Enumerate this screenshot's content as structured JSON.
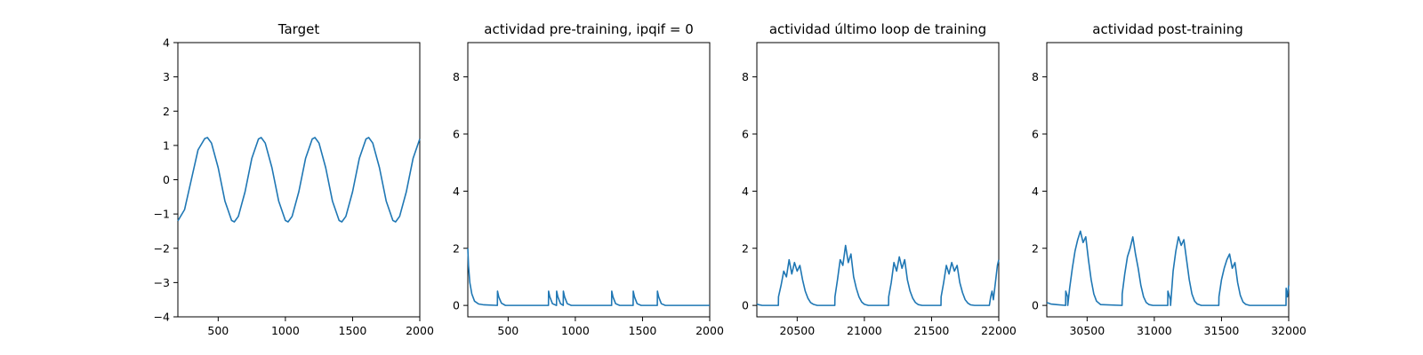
{
  "colors": {
    "series": "#1f77b4",
    "axes": "#000000",
    "background": "#ffffff"
  },
  "chart_data": [
    {
      "type": "line",
      "title": "Target",
      "xlabel": "",
      "ylabel": "",
      "xlim": [
        200,
        2000
      ],
      "ylim": [
        -4,
        4
      ],
      "xticks": [
        500,
        1000,
        1500,
        2000
      ],
      "yticks": [
        -4,
        -3,
        -2,
        -1,
        0,
        1,
        2,
        3,
        4
      ],
      "series": [
        {
          "x": [
            200,
            250,
            300,
            350,
            400,
            420,
            450,
            500,
            550,
            600,
            620,
            650,
            700,
            750,
            800,
            820,
            850,
            900,
            950,
            1000,
            1020,
            1050,
            1100,
            1150,
            1200,
            1220,
            1250,
            1300,
            1350,
            1400,
            1420,
            1450,
            1500,
            1550,
            1600,
            1620,
            1650,
            1700,
            1750,
            1800,
            1820,
            1850,
            1900,
            1950,
            2000
          ],
          "y": [
            -1.2,
            -0.87,
            0,
            0.87,
            1.2,
            1.23,
            1.07,
            0.35,
            -0.62,
            -1.19,
            -1.23,
            -1.07,
            -0.35,
            0.62,
            1.19,
            1.23,
            1.07,
            0.35,
            -0.62,
            -1.19,
            -1.23,
            -1.07,
            -0.35,
            0.62,
            1.19,
            1.23,
            1.07,
            0.35,
            -0.62,
            -1.19,
            -1.23,
            -1.07,
            -0.35,
            0.62,
            1.19,
            1.23,
            1.07,
            0.35,
            -0.62,
            -1.19,
            -1.23,
            -1.07,
            -0.35,
            0.62,
            1.19
          ]
        }
      ]
    },
    {
      "type": "line",
      "title": "actividad pre-training, ipqif = 0",
      "xlabel": "",
      "ylabel": "",
      "xlim": [
        200,
        2000
      ],
      "ylim": [
        -0.4,
        9.2
      ],
      "xticks": [
        500,
        1000,
        1500,
        2000
      ],
      "yticks": [
        0,
        2,
        4,
        6,
        8
      ],
      "series": [
        {
          "x": [
            200,
            205,
            215,
            230,
            250,
            280,
            320,
            420,
            421,
            430,
            450,
            480,
            800,
            801,
            810,
            830,
            860,
            861,
            870,
            890,
            910,
            911,
            920,
            940,
            970,
            1270,
            1271,
            1280,
            1300,
            1330,
            1430,
            1431,
            1440,
            1460,
            1490,
            1610,
            1611,
            1620,
            1640,
            1670,
            2000
          ],
          "y": [
            2.0,
            1.4,
            0.8,
            0.4,
            0.15,
            0.05,
            0.02,
            0.0,
            0.5,
            0.3,
            0.08,
            0.0,
            0.0,
            0.5,
            0.3,
            0.06,
            0.0,
            0.5,
            0.3,
            0.06,
            0.0,
            0.5,
            0.3,
            0.06,
            0.0,
            0.0,
            0.5,
            0.3,
            0.06,
            0.0,
            0.0,
            0.5,
            0.3,
            0.06,
            0.0,
            0.0,
            0.5,
            0.3,
            0.06,
            0.0,
            0.0
          ]
        }
      ]
    },
    {
      "type": "line",
      "title": "actividad último loop de training",
      "xlabel": "",
      "ylabel": "",
      "xlim": [
        20200,
        22000
      ],
      "ylim": [
        -0.4,
        9.2
      ],
      "xticks": [
        20500,
        21000,
        21500,
        22000
      ],
      "yticks": [
        0,
        2,
        4,
        6,
        8
      ],
      "series": [
        {
          "x": [
            20200,
            20210,
            20240,
            20360,
            20361,
            20380,
            20400,
            20420,
            20440,
            20460,
            20480,
            20500,
            20520,
            20540,
            20560,
            20580,
            20600,
            20620,
            20650,
            20780,
            20781,
            20800,
            20820,
            20840,
            20860,
            20880,
            20900,
            20920,
            20940,
            20960,
            20980,
            21000,
            21030,
            21180,
            21181,
            21200,
            21220,
            21240,
            21260,
            21280,
            21300,
            21320,
            21340,
            21360,
            21380,
            21400,
            21430,
            21570,
            21571,
            21590,
            21610,
            21630,
            21650,
            21670,
            21690,
            21710,
            21730,
            21750,
            21770,
            21790,
            21820,
            21930,
            21940,
            21950,
            21960,
            21970,
            21980,
            21990,
            22000
          ],
          "y": [
            0.05,
            0.03,
            0.0,
            0.0,
            0.3,
            0.7,
            1.2,
            1.0,
            1.6,
            1.1,
            1.5,
            1.2,
            1.4,
            0.9,
            0.5,
            0.25,
            0.1,
            0.04,
            0.0,
            0.0,
            0.3,
            0.9,
            1.6,
            1.4,
            2.1,
            1.5,
            1.8,
            1.0,
            0.6,
            0.3,
            0.12,
            0.04,
            0.0,
            0.0,
            0.3,
            0.8,
            1.5,
            1.2,
            1.7,
            1.3,
            1.6,
            0.9,
            0.5,
            0.25,
            0.1,
            0.03,
            0.0,
            0.0,
            0.3,
            0.8,
            1.4,
            1.1,
            1.5,
            1.2,
            1.4,
            0.8,
            0.45,
            0.2,
            0.08,
            0.02,
            0.0,
            0.0,
            0.3,
            0.5,
            0.2,
            0.6,
            1.0,
            1.4,
            1.6
          ]
        }
      ]
    },
    {
      "type": "line",
      "title": "actividad post-training",
      "xlabel": "",
      "ylabel": "",
      "xlim": [
        30200,
        32000
      ],
      "ylim": [
        -0.4,
        9.2
      ],
      "xticks": [
        30500,
        31000,
        31500,
        32000
      ],
      "yticks": [
        0,
        2,
        4,
        6,
        8
      ],
      "series": [
        {
          "x": [
            30200,
            30230,
            30270,
            30340,
            30341,
            30355,
            30356,
            30370,
            30390,
            30410,
            30430,
            30450,
            30470,
            30490,
            30510,
            30530,
            30550,
            30570,
            30600,
            30760,
            30761,
            30780,
            30800,
            30820,
            30840,
            30860,
            30880,
            30900,
            30920,
            30940,
            30960,
            30990,
            31100,
            31101,
            31120,
            31121,
            31140,
            31160,
            31180,
            31200,
            31220,
            31240,
            31260,
            31280,
            31300,
            31320,
            31350,
            31480,
            31481,
            31500,
            31520,
            31540,
            31560,
            31580,
            31600,
            31620,
            31640,
            31660,
            31680,
            31710,
            31980,
            31981,
            31990,
            32000
          ],
          "y": [
            0.1,
            0.05,
            0.03,
            0.0,
            0.5,
            0.3,
            0.0,
            0.6,
            1.3,
            1.9,
            2.3,
            2.6,
            2.2,
            2.4,
            1.6,
            0.9,
            0.4,
            0.15,
            0.03,
            0.0,
            0.4,
            1.1,
            1.7,
            2.0,
            2.4,
            1.8,
            1.3,
            0.7,
            0.3,
            0.1,
            0.03,
            0.0,
            0.0,
            0.5,
            0.2,
            0.0,
            1.2,
            1.9,
            2.4,
            2.1,
            2.3,
            1.6,
            0.9,
            0.4,
            0.15,
            0.05,
            0.0,
            0.0,
            0.3,
            0.9,
            1.3,
            1.6,
            1.8,
            1.3,
            1.5,
            0.8,
            0.35,
            0.12,
            0.04,
            0.0,
            0.0,
            0.6,
            0.3,
            0.7
          ]
        }
      ]
    }
  ]
}
